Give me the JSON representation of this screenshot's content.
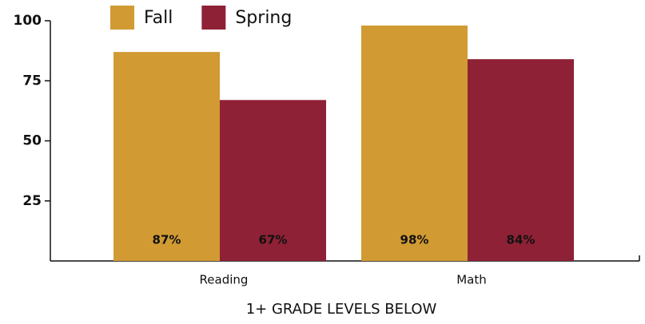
{
  "chart_data": {
    "type": "bar",
    "x_label": "1+ GRADE LEVELS BELOW",
    "categories": [
      "Reading",
      "Math"
    ],
    "series": [
      {
        "name": "Fall",
        "color": "#d19a33",
        "values": [
          87,
          98
        ],
        "value_labels": [
          "87%",
          "98%"
        ]
      },
      {
        "name": "Spring",
        "color": "#8e2135",
        "values": [
          67,
          84
        ],
        "value_labels": [
          "67%",
          "84%"
        ]
      }
    ],
    "ylim": [
      0,
      100
    ],
    "yticks": [
      25,
      50,
      75,
      100
    ],
    "legend": "top"
  }
}
